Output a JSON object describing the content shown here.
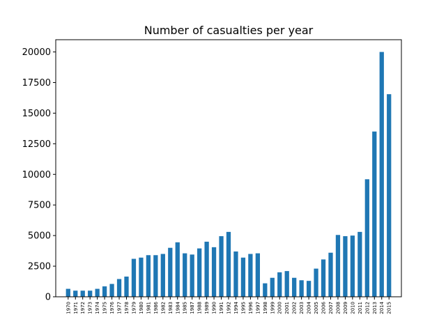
{
  "chart_data": {
    "type": "bar",
    "title": "Number of casualties per year",
    "xlabel": "",
    "ylabel": "",
    "bar_color": "#1f77b4",
    "grid": false,
    "ylim": [
      0,
      21000
    ],
    "yticks": [
      0,
      2500,
      5000,
      7500,
      10000,
      12500,
      15000,
      17500,
      20000
    ],
    "categories": [
      "1970",
      "1971",
      "1972",
      "1973",
      "1974",
      "1975",
      "1976",
      "1977",
      "1978",
      "1979",
      "1980",
      "1981",
      "1986",
      "1982",
      "1983",
      "1984",
      "1985",
      "1987",
      "1988",
      "1989",
      "1990",
      "1991",
      "1992",
      "1994",
      "1995",
      "1996",
      "1997",
      "1998",
      "1999",
      "2000",
      "2001",
      "2002",
      "2003",
      "2004",
      "2005",
      "2006",
      "2007",
      "2008",
      "2009",
      "2010",
      "2011",
      "2012",
      "2013",
      "2014",
      "2015"
    ],
    "values": [
      650,
      500,
      500,
      500,
      650,
      850,
      1050,
      1450,
      1650,
      3100,
      3200,
      3400,
      3400,
      3500,
      4000,
      4450,
      3550,
      3450,
      3950,
      4500,
      4050,
      4950,
      5300,
      3700,
      3200,
      3500,
      3550,
      1100,
      1550,
      2000,
      2100,
      1550,
      1350,
      1300,
      2300,
      3050,
      3600,
      5050,
      4950,
      5000,
      5300,
      9600,
      13500,
      20000,
      16550
    ]
  }
}
